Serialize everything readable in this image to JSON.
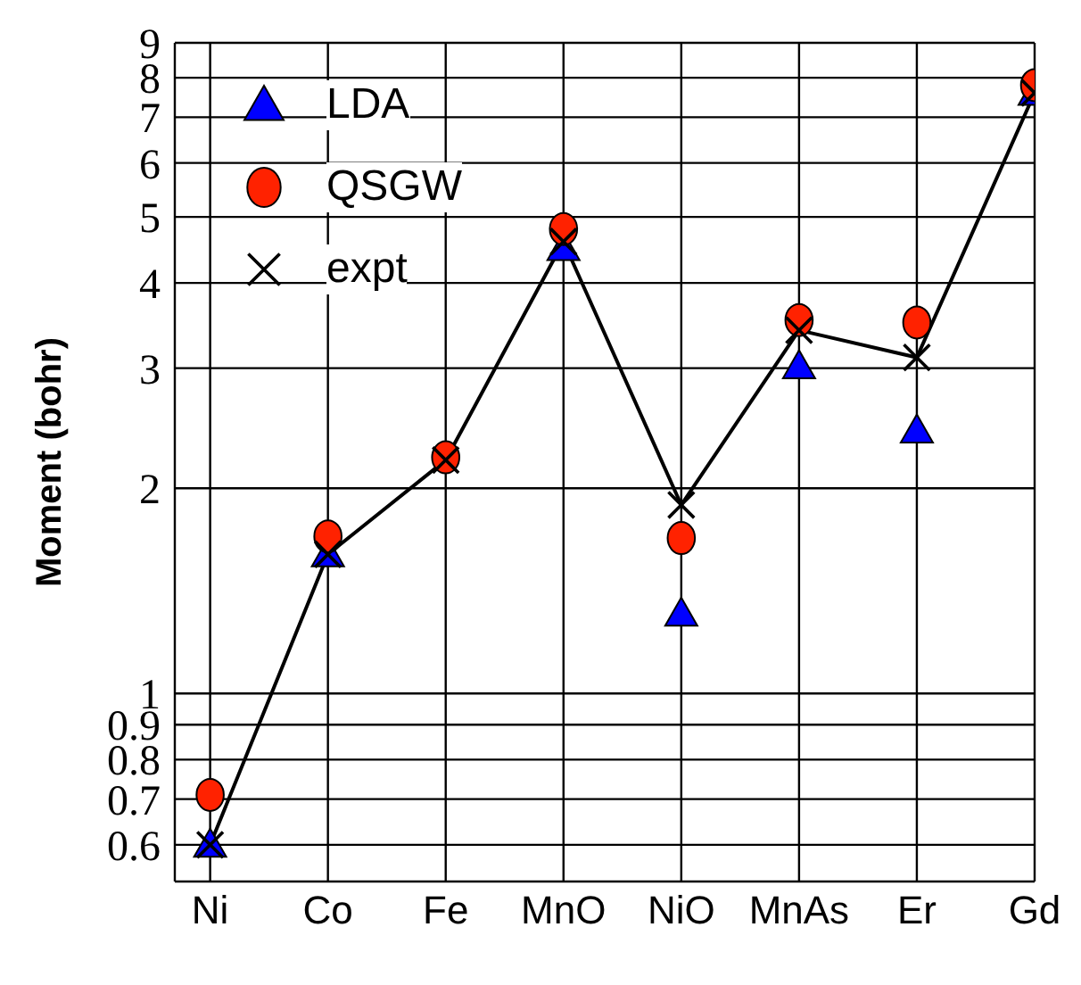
{
  "chart_data": {
    "type": "scatter",
    "ylabel": "Moment (bohr)",
    "categories": [
      "Ni",
      "Co",
      "Fe",
      "MnO",
      "NiO",
      "MnAs",
      "Er",
      "Gd"
    ],
    "series": [
      {
        "name": "LDA",
        "type": "scatter",
        "color": "#0000ff",
        "marker": "triangle",
        "values": [
          0.6,
          1.6,
          null,
          4.5,
          1.31,
          3.02,
          2.43,
          7.6
        ]
      },
      {
        "name": "QSGW",
        "type": "scatter",
        "color": "#ff2200",
        "marker": "circle",
        "values": [
          0.71,
          1.7,
          2.22,
          4.8,
          1.69,
          3.53,
          3.5,
          7.8
        ]
      },
      {
        "name": "expt",
        "type": "line",
        "color": "#000000",
        "marker": "cross",
        "values": [
          0.6,
          1.6,
          2.2,
          4.6,
          1.89,
          3.41,
          3.11,
          7.6
        ]
      }
    ],
    "log": "y",
    "ylim": [
      0.53,
      9
    ],
    "yticks": [
      0.6,
      0.7,
      0.8,
      0.9,
      1,
      2,
      3,
      4,
      5,
      6,
      7,
      8,
      9
    ],
    "grid": true,
    "legend": "top left"
  }
}
